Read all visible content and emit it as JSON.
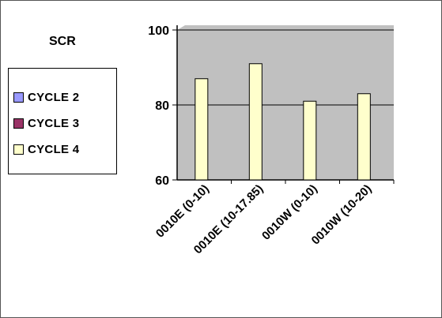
{
  "chart_data": {
    "type": "bar",
    "title": "SCR",
    "categories": [
      "0010E (0-10)",
      "0010E (10-17.85)",
      "0010W (0-10)",
      "0010W (10-20)"
    ],
    "series": [
      {
        "name": "CYCLE 2",
        "color": "#9999ff",
        "values": [
          null,
          null,
          null,
          null
        ]
      },
      {
        "name": "CYCLE 3",
        "color": "#993366",
        "values": [
          null,
          null,
          null,
          null
        ]
      },
      {
        "name": "CYCLE 4",
        "color": "#ffffcc",
        "values": [
          87,
          91,
          81,
          83
        ]
      }
    ],
    "ylim": [
      60,
      100
    ],
    "yticks": [
      "60",
      "80",
      "100"
    ],
    "grid": true,
    "plot_background": "#c0c0c0",
    "legend_position": "left"
  }
}
